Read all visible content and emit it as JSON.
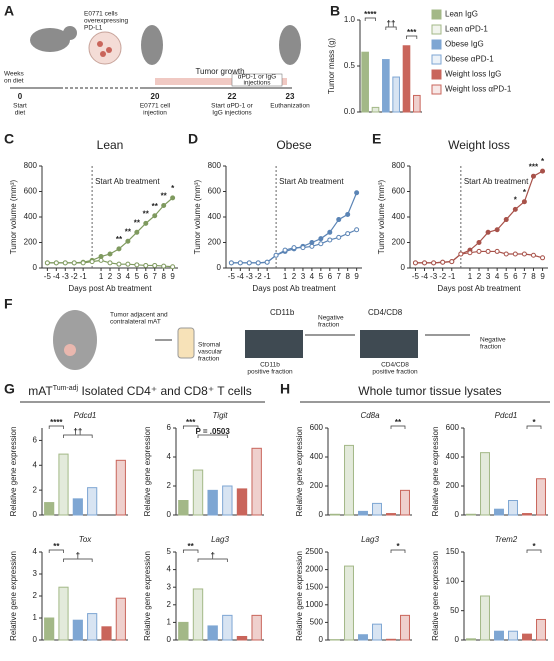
{
  "panel_A": {
    "label": "A",
    "cells": [
      "E0771 cells",
      "overexpressing",
      "PD-L1"
    ],
    "weeks": [
      "Weeks",
      "on diet"
    ],
    "t0": "0",
    "start": [
      "Start",
      "diet"
    ],
    "t20": "20",
    "inject": [
      "E0771 cell",
      "injection"
    ],
    "growth": "Tumor growth",
    "injections": [
      "αPD-1 or IgG",
      "injections"
    ],
    "t22": "22",
    "start_ab": [
      "Start αPD-1 or",
      "IgG injections"
    ],
    "t23": "23",
    "euth": "Euthanization"
  },
  "panel_F": {
    "label": "F",
    "mat": [
      "Tumor adjacent and",
      "contralateral mAT"
    ],
    "svf": [
      "Stromal",
      "vascular",
      "fraction"
    ],
    "cd11b": "CD11b",
    "cd11b_pos": [
      "CD11b",
      "positive fraction"
    ],
    "cd48": "CD4/CD8",
    "neg1": [
      "Negative",
      "fraction"
    ],
    "cd48_pos": [
      "CD4/CD8",
      "positive fraction"
    ],
    "neg2": [
      "Negative",
      "fraction"
    ]
  },
  "panel_G": {
    "label": "G",
    "title_main": "mAT",
    "title_sup": "Tum-adj",
    "title_rest": " Isolated CD4⁺ and CD8⁺ T cells"
  },
  "panel_H": {
    "label": "H",
    "title": "Whole tumor tissue lysates"
  },
  "chart_data": [
    {
      "type": "bar",
      "panel": "B",
      "ylabel": "Tumor mass (g)",
      "categories": [
        "Lean IgG",
        "Lean αPD-1",
        "Obese IgG",
        "Obese αPD-1",
        "Weight loss IgG",
        "Weight loss αPD-1"
      ],
      "values": [
        0.65,
        0.05,
        0.57,
        0.38,
        0.72,
        0.18
      ],
      "colors": [
        "#a3b887",
        "#a3b887",
        "#7ea6d3",
        "#7ea6d3",
        "#c9655b",
        "#c9655b"
      ],
      "hollow": [
        false,
        true,
        false,
        true,
        false,
        true
      ],
      "ylim": [
        0,
        1.0
      ],
      "yticks": [
        {
          "value": 0,
          "label": "0.0"
        },
        {
          "value": 0.5,
          "label": "0.5"
        },
        {
          "value": 1,
          "label": "1.0"
        }
      ],
      "annotations": [
        {
          "label": "****",
          "from": 0,
          "to": 1
        },
        {
          "label": "††",
          "from": 2,
          "to": 3
        },
        {
          "label": "***",
          "from": 4,
          "to": 5
        }
      ],
      "legend": "right"
    },
    {
      "type": "line",
      "panel": "C",
      "title": "Lean",
      "annotation": "Start Ab treatment",
      "marker_x": 0,
      "xlabel": "Days post Ab treatment",
      "ylabel": "Tumor volume (mm³)",
      "x": [
        -5,
        -4,
        -3,
        -2,
        -1,
        0,
        1,
        2,
        3,
        4,
        5,
        6,
        7,
        8,
        9
      ],
      "xlim": [
        -5.6,
        9.6
      ],
      "xticks": [
        -5,
        -4,
        -3,
        -2,
        -1,
        1,
        2,
        3,
        4,
        5,
        6,
        7,
        8,
        9
      ],
      "ylim": [
        0,
        800
      ],
      "yticks": [
        0,
        200,
        400,
        600,
        800
      ],
      "series": [
        {
          "color": "#7f9a5f",
          "hollow": false,
          "values": [
            40,
            40,
            40,
            40,
            45,
            60,
            90,
            110,
            150,
            210,
            280,
            350,
            410,
            490,
            550
          ]
        },
        {
          "color": "#7f9a5f",
          "hollow": true,
          "values": [
            40,
            40,
            40,
            40,
            40,
            50,
            60,
            40,
            30,
            30,
            25,
            20,
            20,
            15,
            10
          ]
        }
      ],
      "sig": [
        {
          "x": 3,
          "label": "**"
        },
        {
          "x": 4,
          "label": "**"
        },
        {
          "x": 5,
          "label": "**"
        },
        {
          "x": 6,
          "label": "**"
        },
        {
          "x": 7,
          "label": "**"
        },
        {
          "x": 8,
          "label": "**"
        },
        {
          "x": 9,
          "label": "*"
        }
      ]
    },
    {
      "type": "line",
      "panel": "D",
      "title": "Obese",
      "annotation": "Start Ab treatment",
      "marker_x": 0,
      "xlabel": "Days post Ab treatment",
      "ylabel": "Tumor volume (mm³)",
      "x": [
        -5,
        -4,
        -3,
        -2,
        -1,
        0,
        1,
        2,
        3,
        4,
        5,
        6,
        7,
        8,
        9
      ],
      "xlim": [
        -5.6,
        9.6
      ],
      "xticks": [
        -5,
        -4,
        -3,
        -2,
        -1,
        1,
        2,
        3,
        4,
        5,
        6,
        7,
        8,
        9
      ],
      "ylim": [
        0,
        800
      ],
      "yticks": [
        0,
        200,
        400,
        600,
        800
      ],
      "series": [
        {
          "color": "#5b84b5",
          "hollow": false,
          "values": [
            40,
            40,
            40,
            40,
            45,
            100,
            130,
            150,
            170,
            200,
            230,
            280,
            380,
            420,
            590
          ]
        },
        {
          "color": "#5b84b5",
          "hollow": true,
          "values": [
            40,
            40,
            40,
            40,
            45,
            100,
            140,
            160,
            160,
            170,
            190,
            220,
            240,
            270,
            300
          ]
        }
      ],
      "sig": []
    },
    {
      "type": "line",
      "panel": "E",
      "title": "Weight loss",
      "annotation": "Start Ab treatment",
      "marker_x": 0,
      "xlabel": "Days post Ab treatment",
      "ylabel": "Tumor volume (mm³)",
      "x": [
        -5,
        -4,
        -3,
        -2,
        -1,
        0,
        1,
        2,
        3,
        4,
        5,
        6,
        7,
        8,
        9
      ],
      "xlim": [
        -5.6,
        9.6
      ],
      "xticks": [
        -5,
        -4,
        -3,
        -2,
        -1,
        1,
        2,
        3,
        4,
        5,
        6,
        7,
        8,
        9
      ],
      "ylim": [
        0,
        800
      ],
      "yticks": [
        0,
        200,
        400,
        600,
        800
      ],
      "series": [
        {
          "color": "#a8524a",
          "hollow": false,
          "values": [
            40,
            40,
            40,
            45,
            50,
            110,
            140,
            200,
            280,
            300,
            380,
            460,
            520,
            720,
            760
          ]
        },
        {
          "color": "#a8524a",
          "hollow": true,
          "values": [
            40,
            40,
            40,
            45,
            50,
            110,
            120,
            130,
            130,
            130,
            110,
            110,
            110,
            100,
            80
          ]
        }
      ],
      "sig": [
        {
          "x": 6,
          "label": "*"
        },
        {
          "x": 7,
          "label": "*"
        },
        {
          "x": 8,
          "label": "***"
        },
        {
          "x": 9,
          "label": "*"
        }
      ]
    },
    {
      "type": "bar",
      "title": "Pdcd1",
      "ylabel": "Relative gene expression",
      "values": [
        1.0,
        4.9,
        1.3,
        2.2,
        null,
        4.4
      ],
      "colors": [
        "#a3b887",
        "#a3b887",
        "#7ea6d3",
        "#7ea6d3",
        "#c9655b",
        "#c9655b"
      ],
      "hollow": [
        false,
        true,
        false,
        true,
        false,
        true
      ],
      "ylim": [
        0,
        7
      ],
      "yticks": [
        0,
        2,
        4,
        6
      ],
      "annotations": [
        {
          "label": "****",
          "from": 0,
          "to": 1
        },
        {
          "label": "††",
          "from": 1,
          "to": 3
        }
      ]
    },
    {
      "type": "bar",
      "title": "Tigit",
      "ylabel": "Relative gene expression",
      "values": [
        1.0,
        3.1,
        1.7,
        2.0,
        1.8,
        4.6
      ],
      "colors": [
        "#a3b887",
        "#a3b887",
        "#7ea6d3",
        "#7ea6d3",
        "#c9655b",
        "#c9655b"
      ],
      "hollow": [
        false,
        true,
        false,
        true,
        false,
        true
      ],
      "ylim": [
        0,
        6
      ],
      "yticks": [
        0,
        2,
        4,
        6
      ],
      "annotations": [
        {
          "label": "***",
          "from": 0,
          "to": 1
        },
        {
          "label": "P = .0503",
          "from": 1,
          "to": 3
        }
      ]
    },
    {
      "type": "bar",
      "title": "Tox",
      "ylabel": "Relative gene expression",
      "values": [
        1.0,
        2.4,
        0.9,
        1.2,
        0.6,
        1.9
      ],
      "colors": [
        "#a3b887",
        "#a3b887",
        "#7ea6d3",
        "#7ea6d3",
        "#c9655b",
        "#c9655b"
      ],
      "hollow": [
        false,
        true,
        false,
        true,
        false,
        true
      ],
      "ylim": [
        0,
        4
      ],
      "yticks": [
        0,
        1,
        2,
        3,
        4
      ],
      "annotations": [
        {
          "label": "**",
          "from": 0,
          "to": 1
        },
        {
          "label": "†",
          "from": 1,
          "to": 3
        }
      ]
    },
    {
      "type": "bar",
      "title": "Lag3",
      "ylabel": "Relative gene expression",
      "values": [
        1.0,
        2.9,
        0.8,
        1.4,
        0.2,
        1.4
      ],
      "colors": [
        "#a3b887",
        "#a3b887",
        "#7ea6d3",
        "#7ea6d3",
        "#c9655b",
        "#c9655b"
      ],
      "hollow": [
        false,
        true,
        false,
        true,
        false,
        true
      ],
      "ylim": [
        0,
        5
      ],
      "yticks": [
        0,
        1,
        2,
        3,
        4,
        5
      ],
      "annotations": [
        {
          "label": "**",
          "from": 0,
          "to": 1
        },
        {
          "label": "†",
          "from": 1,
          "to": 3
        }
      ]
    },
    {
      "type": "bar",
      "title": "Cd8a",
      "ylabel": "Relative gene expression",
      "values": [
        5,
        480,
        25,
        80,
        10,
        170
      ],
      "colors": [
        "#a3b887",
        "#a3b887",
        "#7ea6d3",
        "#7ea6d3",
        "#c9655b",
        "#c9655b"
      ],
      "hollow": [
        false,
        true,
        false,
        true,
        false,
        true
      ],
      "ylim": [
        0,
        600
      ],
      "yticks": [
        0,
        200,
        400,
        600
      ],
      "annotations": [
        {
          "label": "**",
          "from": 4,
          "to": 5
        }
      ]
    },
    {
      "type": "bar",
      "title": "Pdcd1",
      "ylabel": "Relative gene expression",
      "values": [
        5,
        430,
        40,
        100,
        10,
        250
      ],
      "colors": [
        "#a3b887",
        "#a3b887",
        "#7ea6d3",
        "#7ea6d3",
        "#c9655b",
        "#c9655b"
      ],
      "hollow": [
        false,
        true,
        false,
        true,
        false,
        true
      ],
      "ylim": [
        0,
        600
      ],
      "yticks": [
        0,
        200,
        400,
        600
      ],
      "annotations": [
        {
          "label": "*",
          "from": 4,
          "to": 5
        }
      ]
    },
    {
      "type": "bar",
      "title": "Lag3",
      "ylabel": "Relative gene expression",
      "values": [
        10,
        2100,
        150,
        450,
        20,
        700
      ],
      "colors": [
        "#a3b887",
        "#a3b887",
        "#7ea6d3",
        "#7ea6d3",
        "#c9655b",
        "#c9655b"
      ],
      "hollow": [
        false,
        true,
        false,
        true,
        false,
        true
      ],
      "ylim": [
        0,
        2500
      ],
      "yticks": [
        0,
        500,
        1000,
        1500,
        2000,
        2500
      ],
      "annotations": [
        {
          "label": "*",
          "from": 4,
          "to": 5
        }
      ]
    },
    {
      "type": "bar",
      "title": "Trem2",
      "ylabel": "Relative gene expression",
      "values": [
        2,
        75,
        15,
        15,
        10,
        35
      ],
      "colors": [
        "#a3b887",
        "#a3b887",
        "#7ea6d3",
        "#7ea6d3",
        "#c9655b",
        "#c9655b"
      ],
      "hollow": [
        false,
        true,
        false,
        true,
        false,
        true
      ],
      "ylim": [
        0,
        150
      ],
      "yticks": [
        0,
        50,
        100,
        150
      ],
      "annotations": [
        {
          "label": "*",
          "from": 4,
          "to": 5
        }
      ]
    }
  ]
}
